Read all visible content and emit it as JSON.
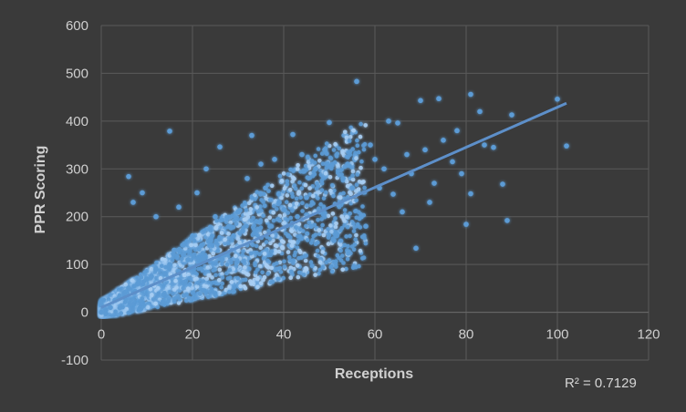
{
  "chart_data": {
    "type": "scatter",
    "title": "",
    "xlabel": "Receptions",
    "ylabel": "PPR Scoring",
    "xlim": [
      0,
      120
    ],
    "ylim": [
      -100,
      600
    ],
    "x_ticks": [
      0,
      20,
      40,
      60,
      80,
      100,
      120
    ],
    "y_ticks": [
      -100,
      0,
      100,
      200,
      300,
      400,
      500,
      600
    ],
    "grid": "vertical and horizontal",
    "legend": "none",
    "colors": {
      "points": "#5b9bd5",
      "glow": "#6fb2ff",
      "trendline": "#5d8fc9",
      "background": "#3a3a3a",
      "grid": "#5a5a5a"
    },
    "trendline": {
      "type": "linear",
      "slope": 4.19,
      "intercept": 10,
      "x_range": [
        0,
        102
      ],
      "label": "R² = 0.7129"
    },
    "series": [
      {
        "values_note": "",
        "points": [
          [
            56,
            483
          ],
          [
            100,
            446
          ],
          [
            81,
            456
          ],
          [
            74,
            447
          ],
          [
            70,
            443
          ],
          [
            15,
            379
          ],
          [
            102,
            348
          ],
          [
            90,
            413
          ],
          [
            86,
            345
          ],
          [
            83,
            420
          ],
          [
            63,
            400
          ],
          [
            65,
            396
          ],
          [
            50,
            397
          ],
          [
            42,
            372
          ],
          [
            33,
            370
          ],
          [
            26,
            346
          ],
          [
            6,
            284
          ],
          [
            89,
            192
          ],
          [
            88,
            268
          ],
          [
            69,
            134
          ],
          [
            80,
            184
          ],
          [
            81,
            248
          ],
          [
            78,
            380
          ],
          [
            72,
            230
          ],
          [
            77,
            315
          ],
          [
            64,
            247
          ],
          [
            60,
            320
          ],
          [
            55,
            260
          ],
          [
            52,
            225
          ],
          [
            58,
            180
          ],
          [
            47,
            300
          ],
          [
            45,
            240
          ],
          [
            40,
            215
          ],
          [
            36,
            260
          ],
          [
            30,
            210
          ],
          [
            28,
            180
          ],
          [
            24,
            150
          ],
          [
            20,
            160
          ],
          [
            18,
            120
          ],
          [
            15,
            100
          ],
          [
            12,
            90
          ],
          [
            10,
            70
          ],
          [
            8,
            60
          ],
          [
            5,
            40
          ],
          [
            3,
            25
          ],
          [
            2,
            10
          ],
          [
            1,
            5
          ],
          [
            0,
            0
          ],
          [
            0,
            15
          ],
          [
            1,
            -3
          ],
          [
            4,
            30
          ],
          [
            6,
            50
          ],
          [
            9,
            45
          ],
          [
            11,
            75
          ],
          [
            14,
            80
          ],
          [
            16,
            130
          ],
          [
            19,
            110
          ],
          [
            22,
            140
          ],
          [
            25,
            200
          ],
          [
            27,
            120
          ],
          [
            29,
            160
          ],
          [
            31,
            170
          ],
          [
            34,
            190
          ],
          [
            37,
            180
          ],
          [
            39,
            230
          ],
          [
            41,
            160
          ],
          [
            43,
            200
          ],
          [
            46,
            180
          ],
          [
            48,
            210
          ],
          [
            51,
            150
          ],
          [
            53,
            280
          ],
          [
            57,
            200
          ],
          [
            61,
            260
          ],
          [
            66,
            210
          ],
          [
            68,
            290
          ],
          [
            71,
            340
          ],
          [
            73,
            270
          ],
          [
            75,
            360
          ],
          [
            79,
            290
          ],
          [
            84,
            350
          ],
          [
            7,
            230
          ],
          [
            9,
            250
          ],
          [
            12,
            200
          ],
          [
            17,
            220
          ],
          [
            21,
            250
          ],
          [
            23,
            300
          ],
          [
            32,
            280
          ],
          [
            35,
            310
          ],
          [
            38,
            320
          ],
          [
            44,
            330
          ],
          [
            49,
            340
          ],
          [
            54,
            310
          ],
          [
            59,
            350
          ],
          [
            62,
            300
          ],
          [
            67,
            330
          ]
        ]
      }
    ],
    "cluster_note": ""
  },
  "labels": {
    "r2": "R² = 0.7129"
  }
}
